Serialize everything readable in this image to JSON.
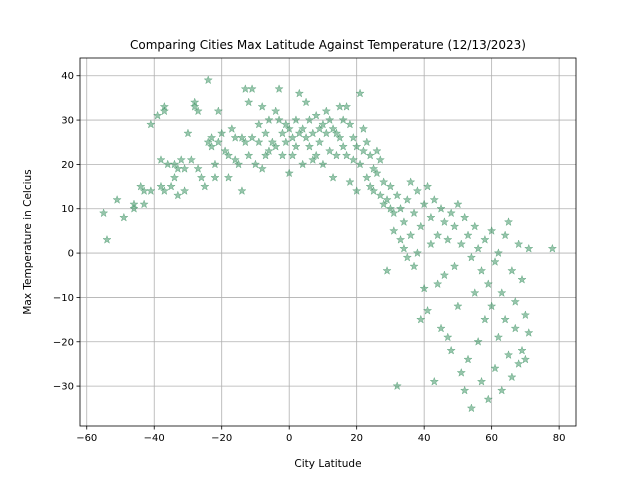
{
  "chart_data": {
    "type": "scatter",
    "title": "Comparing Cities Max Latitude Against Temperature (12/13/2023)",
    "xlabel": "City Latitude",
    "ylabel": "Max Temperature in Celcius",
    "xlim": [
      -62,
      85
    ],
    "ylim": [
      -39,
      44
    ],
    "xticks": [
      -60,
      -40,
      -20,
      0,
      20,
      40,
      60,
      80
    ],
    "yticks": [
      -30,
      -20,
      -10,
      0,
      10,
      20,
      30,
      40
    ],
    "grid": true,
    "marker": "star",
    "color": "#2e8b57",
    "points": [
      [
        -55,
        9
      ],
      [
        -54,
        3
      ],
      [
        -51,
        12
      ],
      [
        -49,
        8
      ],
      [
        -46,
        11
      ],
      [
        -46,
        10
      ],
      [
        -44,
        15
      ],
      [
        -43,
        14
      ],
      [
        -43,
        11
      ],
      [
        -41,
        29
      ],
      [
        -41,
        14
      ],
      [
        -39,
        31
      ],
      [
        -38,
        21
      ],
      [
        -38,
        15
      ],
      [
        -37,
        33
      ],
      [
        -37,
        32
      ],
      [
        -37,
        14
      ],
      [
        -36,
        20
      ],
      [
        -35,
        15
      ],
      [
        -34,
        17
      ],
      [
        -34,
        20
      ],
      [
        -33,
        19
      ],
      [
        -33,
        13
      ],
      [
        -32,
        21
      ],
      [
        -31,
        19
      ],
      [
        -31,
        14
      ],
      [
        -30,
        27
      ],
      [
        -29,
        21
      ],
      [
        -28,
        34
      ],
      [
        -28,
        33
      ],
      [
        -27,
        32
      ],
      [
        -27,
        19
      ],
      [
        -26,
        17
      ],
      [
        -25,
        15
      ],
      [
        -24,
        39
      ],
      [
        -24,
        25
      ],
      [
        -23,
        26
      ],
      [
        -23,
        24
      ],
      [
        -22,
        20
      ],
      [
        -22,
        17
      ],
      [
        -21,
        32
      ],
      [
        -21,
        25
      ],
      [
        -20,
        27
      ],
      [
        -19,
        23
      ],
      [
        -18,
        22
      ],
      [
        -18,
        17
      ],
      [
        -17,
        28
      ],
      [
        -16,
        26
      ],
      [
        -16,
        21
      ],
      [
        -15,
        20
      ],
      [
        -14,
        26
      ],
      [
        -14,
        14
      ],
      [
        -13,
        37
      ],
      [
        -13,
        25
      ],
      [
        -12,
        34
      ],
      [
        -12,
        22
      ],
      [
        -11,
        37
      ],
      [
        -11,
        26
      ],
      [
        -10,
        20
      ],
      [
        -9,
        29
      ],
      [
        -9,
        25
      ],
      [
        -8,
        33
      ],
      [
        -8,
        19
      ],
      [
        -7,
        27
      ],
      [
        -7,
        22
      ],
      [
        -6,
        30
      ],
      [
        -6,
        23
      ],
      [
        -5,
        25
      ],
      [
        -4,
        32
      ],
      [
        -4,
        24
      ],
      [
        -3,
        37
      ],
      [
        -3,
        30
      ],
      [
        -2,
        27
      ],
      [
        -2,
        22
      ],
      [
        -1,
        29
      ],
      [
        -1,
        25
      ],
      [
        0,
        28
      ],
      [
        0,
        18
      ],
      [
        1,
        26
      ],
      [
        1,
        22
      ],
      [
        2,
        30
      ],
      [
        2,
        24
      ],
      [
        3,
        36
      ],
      [
        3,
        27
      ],
      [
        4,
        28
      ],
      [
        4,
        20
      ],
      [
        5,
        34
      ],
      [
        5,
        26
      ],
      [
        6,
        30
      ],
      [
        6,
        24
      ],
      [
        7,
        27
      ],
      [
        7,
        21
      ],
      [
        8,
        31
      ],
      [
        8,
        22
      ],
      [
        9,
        28
      ],
      [
        9,
        25
      ],
      [
        10,
        29
      ],
      [
        10,
        20
      ],
      [
        11,
        32
      ],
      [
        11,
        27
      ],
      [
        12,
        30
      ],
      [
        12,
        23
      ],
      [
        13,
        28
      ],
      [
        13,
        17
      ],
      [
        14,
        27
      ],
      [
        14,
        22
      ],
      [
        15,
        33
      ],
      [
        15,
        26
      ],
      [
        16,
        30
      ],
      [
        16,
        24
      ],
      [
        17,
        33
      ],
      [
        17,
        22
      ],
      [
        18,
        29
      ],
      [
        18,
        16
      ],
      [
        19,
        26
      ],
      [
        19,
        21
      ],
      [
        20,
        24
      ],
      [
        20,
        14
      ],
      [
        21,
        36
      ],
      [
        21,
        20
      ],
      [
        22,
        28
      ],
      [
        22,
        23
      ],
      [
        23,
        25
      ],
      [
        23,
        17
      ],
      [
        24,
        22
      ],
      [
        24,
        15
      ],
      [
        25,
        19
      ],
      [
        25,
        14
      ],
      [
        26,
        23
      ],
      [
        26,
        18
      ],
      [
        27,
        21
      ],
      [
        27,
        13
      ],
      [
        28,
        16
      ],
      [
        28,
        11
      ],
      [
        29,
        12
      ],
      [
        29,
        -4
      ],
      [
        30,
        15
      ],
      [
        30,
        10
      ],
      [
        31,
        9
      ],
      [
        31,
        5
      ],
      [
        32,
        13
      ],
      [
        32,
        -30
      ],
      [
        33,
        10
      ],
      [
        33,
        3
      ],
      [
        34,
        7
      ],
      [
        34,
        1
      ],
      [
        35,
        12
      ],
      [
        35,
        -1
      ],
      [
        36,
        16
      ],
      [
        36,
        4
      ],
      [
        37,
        9
      ],
      [
        37,
        -3
      ],
      [
        38,
        14
      ],
      [
        38,
        0
      ],
      [
        39,
        6
      ],
      [
        39,
        -15
      ],
      [
        40,
        11
      ],
      [
        40,
        -8
      ],
      [
        41,
        15
      ],
      [
        41,
        -13
      ],
      [
        42,
        8
      ],
      [
        42,
        2
      ],
      [
        43,
        12
      ],
      [
        43,
        -29
      ],
      [
        44,
        4
      ],
      [
        44,
        -7
      ],
      [
        45,
        10
      ],
      [
        45,
        -17
      ],
      [
        46,
        7
      ],
      [
        46,
        -5
      ],
      [
        47,
        3
      ],
      [
        47,
        -19
      ],
      [
        48,
        9
      ],
      [
        48,
        -22
      ],
      [
        49,
        6
      ],
      [
        49,
        -3
      ],
      [
        50,
        11
      ],
      [
        50,
        -12
      ],
      [
        51,
        2
      ],
      [
        51,
        -27
      ],
      [
        52,
        8
      ],
      [
        52,
        -31
      ],
      [
        53,
        4
      ],
      [
        53,
        -24
      ],
      [
        54,
        -1
      ],
      [
        54,
        -35
      ],
      [
        55,
        6
      ],
      [
        55,
        -9
      ],
      [
        56,
        1
      ],
      [
        56,
        -20
      ],
      [
        57,
        -4
      ],
      [
        57,
        -29
      ],
      [
        58,
        3
      ],
      [
        58,
        -15
      ],
      [
        59,
        -7
      ],
      [
        59,
        -33
      ],
      [
        60,
        5
      ],
      [
        60,
        -12
      ],
      [
        61,
        -2
      ],
      [
        61,
        -26
      ],
      [
        62,
        0
      ],
      [
        62,
        -19
      ],
      [
        63,
        -9
      ],
      [
        63,
        -31
      ],
      [
        64,
        4
      ],
      [
        64,
        -15
      ],
      [
        65,
        7
      ],
      [
        65,
        -23
      ],
      [
        66,
        -4
      ],
      [
        66,
        -28
      ],
      [
        67,
        -11
      ],
      [
        67,
        -17
      ],
      [
        68,
        2
      ],
      [
        68,
        -25
      ],
      [
        69,
        -6
      ],
      [
        69,
        -22
      ],
      [
        70,
        -14
      ],
      [
        70,
        -24
      ],
      [
        71,
        1
      ],
      [
        71,
        -18
      ],
      [
        78,
        1
      ]
    ]
  }
}
